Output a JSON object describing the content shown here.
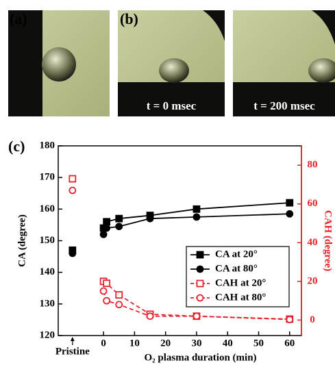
{
  "panels": {
    "a": "(a)",
    "b": "(b)",
    "c": "(c)",
    "b_time": "t = 0 msec",
    "c_time": "t = 200 msec"
  },
  "chart_data": {
    "type": "line",
    "panel_label": "(c)",
    "xlabel": "O₂ plasma duration (min)",
    "ylabel": "CA (degree)",
    "y2label": "CAH (degree)",
    "x": [
      0,
      1,
      5,
      15,
      30,
      60
    ],
    "xlim": [
      -14.6,
      63.8
    ],
    "xticks": [
      {
        "value": -10,
        "label": "Pristine"
      },
      0,
      10,
      20,
      30,
      40,
      50,
      60
    ],
    "ylim": [
      120,
      180
    ],
    "yticks": [
      120,
      130,
      140,
      150,
      160,
      170,
      180
    ],
    "y2lim": [
      -8,
      90
    ],
    "y2ticks": [
      0,
      20,
      40,
      60,
      80
    ],
    "y2color": "#e8202a",
    "legend": "lower right",
    "series": [
      {
        "name": "CA at 20°",
        "color": "#000000",
        "marker": "square",
        "filled": true,
        "linestyle": "solid",
        "axis": "y",
        "pristine": 147,
        "values": [
          154,
          156,
          157,
          158,
          160,
          162
        ]
      },
      {
        "name": "CA at 80°",
        "color": "#000000",
        "marker": "circle",
        "filled": true,
        "linestyle": "solid",
        "axis": "y",
        "pristine": 146,
        "values": [
          152,
          154,
          154.5,
          157,
          157.5,
          158.5
        ]
      },
      {
        "name": "CAH at 20°",
        "color": "#e8202a",
        "marker": "square",
        "filled": false,
        "linestyle": "dashed",
        "axis": "y2",
        "pristine": 73,
        "values": [
          20,
          19,
          13,
          3,
          2,
          0.5
        ]
      },
      {
        "name": "CAH at 80°",
        "color": "#e8202a",
        "marker": "circle",
        "filled": false,
        "linestyle": "dashed",
        "axis": "y2",
        "pristine": 67,
        "values": [
          15,
          10,
          8,
          2,
          2,
          0.3
        ]
      }
    ]
  }
}
